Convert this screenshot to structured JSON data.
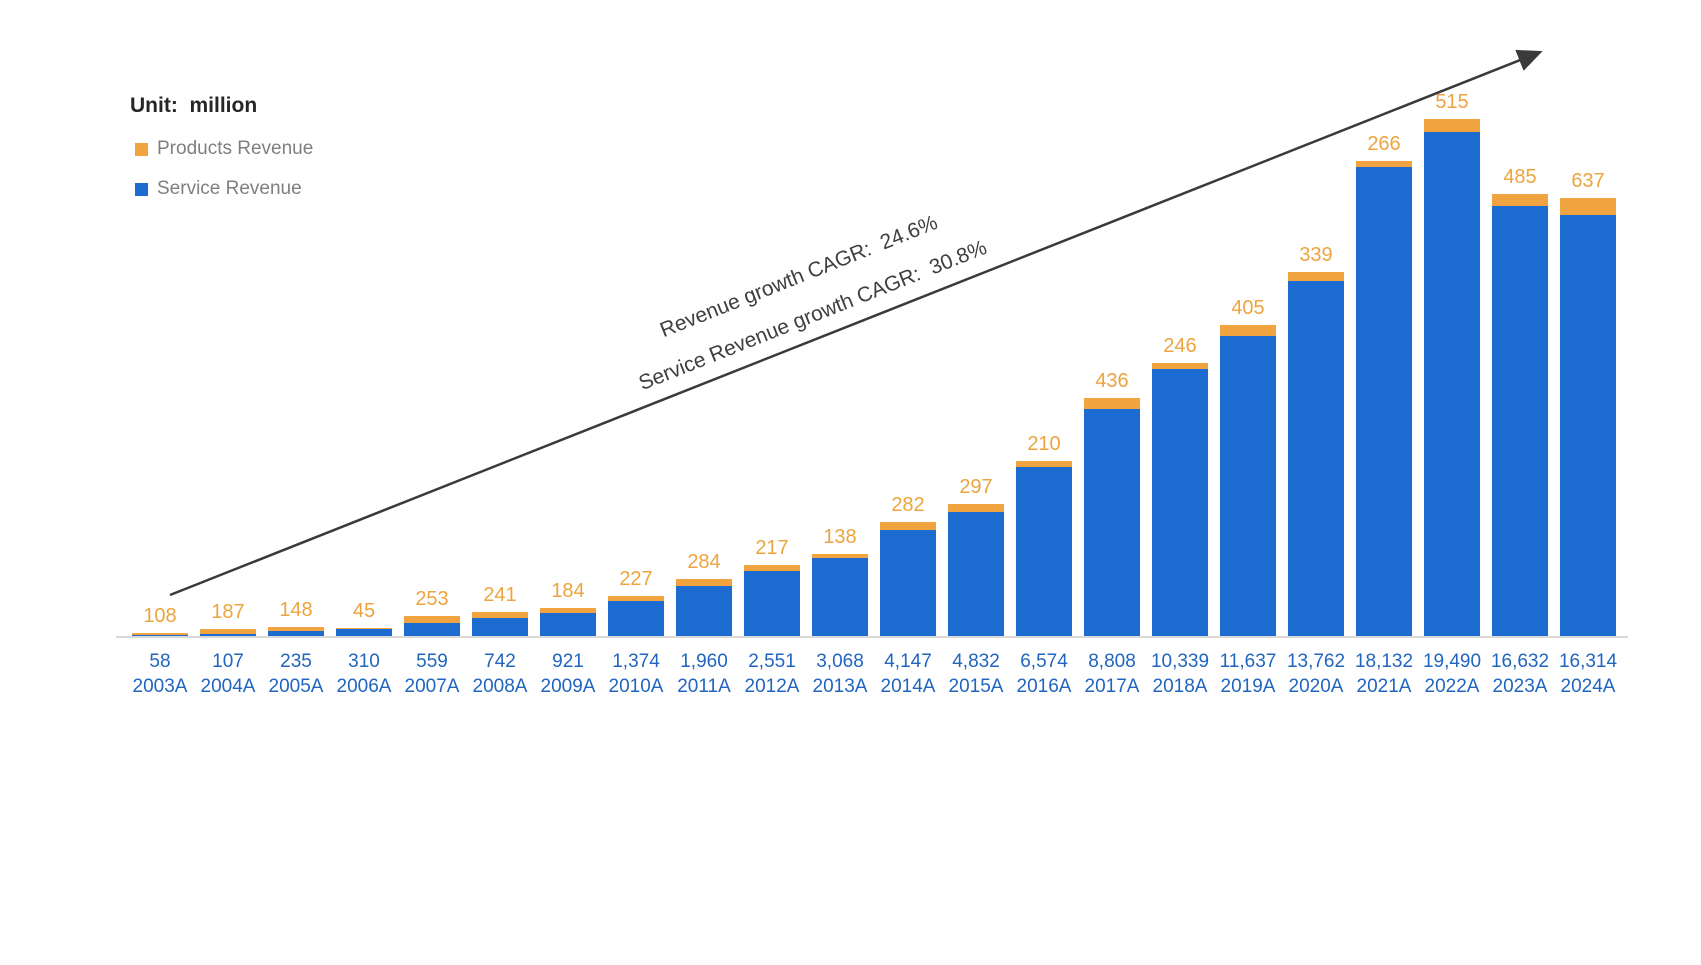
{
  "header": {
    "unit_label": "Unit:  million"
  },
  "legend": [
    {
      "label": "Products Revenue",
      "color": "#f0a33e"
    },
    {
      "label": "Service Revenue",
      "color": "#1b6bd0"
    }
  ],
  "annotations": [
    {
      "text": "Revenue growth CAGR:  24.6%"
    },
    {
      "text": "Service Revenue growth CAGR:  30.8%"
    }
  ],
  "colors": {
    "service_bar": "#1b6bd0",
    "products_bar": "#f0a33e",
    "products_label": "#eda43f",
    "axis_text": "#2065c0",
    "arrow": "#3a3a3a",
    "axis_line": "#d9d9d9"
  },
  "chart_data": {
    "type": "bar",
    "stacked": true,
    "title": "",
    "unit": "million",
    "xlabel": "",
    "ylabel": "",
    "grid": false,
    "legend_position": "top-left",
    "categories": [
      "2003A",
      "2004A",
      "2005A",
      "2006A",
      "2007A",
      "2008A",
      "2009A",
      "2010A",
      "2011A",
      "2012A",
      "2013A",
      "2014A",
      "2015A",
      "2016A",
      "2017A",
      "2018A",
      "2019A",
      "2020A",
      "2021A",
      "2022A",
      "2023A",
      "2024A"
    ],
    "series": [
      {
        "name": "Service Revenue",
        "color": "#1b6bd0",
        "values": [
          58,
          107,
          235,
          310,
          559,
          742,
          921,
          1374,
          1960,
          2551,
          3068,
          4147,
          4832,
          6574,
          8808,
          10339,
          11637,
          13762,
          18132,
          19490,
          16632,
          16314
        ]
      },
      {
        "name": "Products Revenue",
        "color": "#f0a33e",
        "values": [
          108,
          187,
          148,
          45,
          253,
          241,
          184,
          227,
          284,
          217,
          138,
          282,
          297,
          210,
          436,
          246,
          405,
          339,
          266,
          515,
          485,
          637
        ]
      }
    ],
    "value_label_rows": {
      "above_bars": "Products Revenue",
      "below_axis": "Service Revenue"
    },
    "annotations": [
      {
        "text": "Revenue growth CAGR:  24.6%",
        "metric": "Revenue growth CAGR",
        "value": "24.6%"
      },
      {
        "text": "Service Revenue growth CAGR:  30.8%",
        "metric": "Service Revenue growth CAGR",
        "value": "30.8%"
      }
    ]
  }
}
